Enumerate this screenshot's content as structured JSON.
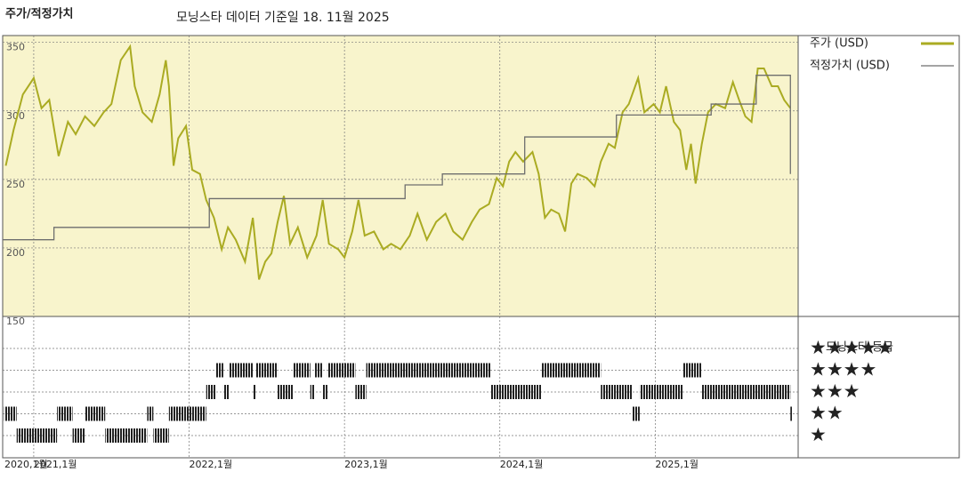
{
  "chart_data": {
    "type": "line",
    "title": "주가/적정가치",
    "subtitle": "모닝스타 데이터 기준일 18. 11월 2025",
    "xlim": [
      2020.8,
      2025.92
    ],
    "xticks": [
      {
        "value": 2020,
        "label": "2020,1월"
      },
      {
        "value": 2021,
        "label": "2021,1월"
      },
      {
        "value": 2022,
        "label": "2022,1월"
      },
      {
        "value": 2023,
        "label": "2023,1월"
      },
      {
        "value": 2024,
        "label": "2024,1월"
      },
      {
        "value": 2025,
        "label": "2025,1월"
      }
    ],
    "ylim": [
      150,
      355
    ],
    "yticks": [
      150,
      200,
      250,
      300,
      350
    ],
    "grid": true,
    "series": [
      {
        "name": "주가 (USD)",
        "color": "#aaab22",
        "step": false,
        "x": [
          2020.82,
          2020.87,
          2020.93,
          2021.0,
          2021.05,
          2021.1,
          2021.16,
          2021.22,
          2021.27,
          2021.33,
          2021.39,
          2021.45,
          2021.5,
          2021.56,
          2021.62,
          2021.65,
          2021.7,
          2021.76,
          2021.81,
          2021.85,
          2021.87,
          2021.9,
          2021.93,
          2021.98,
          2022.02,
          2022.07,
          2022.11,
          2022.16,
          2022.21,
          2022.25,
          2022.3,
          2022.36,
          2022.41,
          2022.45,
          2022.49,
          2022.53,
          2022.57,
          2022.61,
          2022.65,
          2022.7,
          2022.76,
          2022.82,
          2022.86,
          2022.9,
          2022.96,
          2023.0,
          2023.05,
          2023.09,
          2023.13,
          2023.19,
          2023.25,
          2023.3,
          2023.36,
          2023.42,
          2023.47,
          2023.53,
          2023.59,
          2023.65,
          2023.7,
          2023.76,
          2023.82,
          2023.87,
          2023.93,
          2023.98,
          2024.02,
          2024.06,
          2024.1,
          2024.15,
          2024.21,
          2024.25,
          2024.29,
          2024.33,
          2024.38,
          2024.42,
          2024.46,
          2024.5,
          2024.56,
          2024.61,
          2024.65,
          2024.7,
          2024.74,
          2024.79,
          2024.83,
          2024.89,
          2024.93,
          2024.99,
          2025.03,
          2025.07,
          2025.12,
          2025.16,
          2025.2,
          2025.23,
          2025.26,
          2025.3,
          2025.34,
          2025.39,
          2025.45,
          2025.5,
          2025.54,
          2025.58,
          2025.62,
          2025.66,
          2025.7,
          2025.75,
          2025.79,
          2025.83,
          2025.87
        ],
        "values": [
          260,
          286,
          312,
          324,
          302,
          308,
          267,
          292,
          283,
          296,
          289,
          299,
          305,
          337,
          347,
          318,
          299,
          292,
          312,
          337,
          318,
          260,
          280,
          289,
          257,
          254,
          235,
          222,
          199,
          215,
          206,
          190,
          222,
          177,
          190,
          196,
          219,
          238,
          203,
          215,
          193,
          209,
          235,
          203,
          199,
          193,
          212,
          235,
          209,
          212,
          199,
          203,
          199,
          209,
          225,
          206,
          219,
          225,
          212,
          206,
          219,
          228,
          232,
          251,
          245,
          263,
          270,
          263,
          270,
          254,
          222,
          228,
          225,
          212,
          247,
          254,
          251,
          245,
          263,
          276,
          273,
          299,
          305,
          324,
          299,
          305,
          299,
          318,
          292,
          286,
          257,
          276,
          247,
          276,
          299,
          305,
          302,
          321,
          308,
          296,
          292,
          331,
          331,
          318,
          318,
          308,
          302
        ]
      },
      {
        "name": "적정가치 (USD)",
        "color": "#6e6e6e",
        "step": true,
        "x": [
          2020.8,
          2021.13,
          2022.13,
          2023.39,
          2023.63,
          2024.16,
          2024.75,
          2025.36,
          2025.65,
          2025.87
        ],
        "values": [
          206,
          215,
          236,
          246,
          254,
          281,
          297,
          305,
          326,
          254
        ]
      }
    ],
    "ratings": {
      "title": "모닝스타 등급",
      "labels": [
        "★",
        "★★",
        "★★★",
        "★★★★",
        "★★★★★"
      ],
      "x": [
        2020.81,
        2020.89,
        2021.15,
        2021.25,
        2021.33,
        2021.46,
        2021.73,
        2021.77,
        2021.87,
        2022.11,
        2022.17,
        2022.22,
        2022.26,
        2022.41,
        2022.43,
        2022.57,
        2022.67,
        2022.78,
        2022.81,
        2022.86,
        2022.89,
        2023.07,
        2023.14,
        2023.94,
        2024.27,
        2024.65,
        2024.85,
        2024.9,
        2025.18,
        2025.3,
        2025.87
      ],
      "values": [
        2,
        1,
        2,
        1,
        2,
        1,
        2,
        1,
        2,
        3,
        4,
        3,
        4,
        3,
        4,
        3,
        4,
        3,
        4,
        3,
        4,
        3,
        4,
        3,
        4,
        3,
        2,
        3,
        4,
        3,
        2
      ]
    }
  }
}
